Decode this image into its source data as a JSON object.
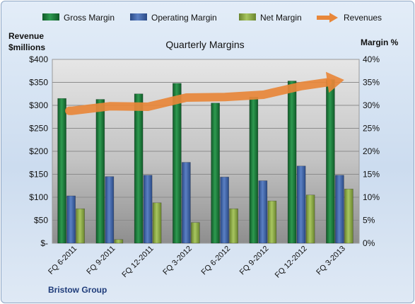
{
  "chart_data": {
    "type": "bar",
    "title": "Quarterly Margins",
    "ylabel_left": "Revenue\n$millions",
    "ylabel_right": "Margin %",
    "source": "Bristow Group",
    "categories": [
      "FQ 6-2011",
      "FQ 9-2011",
      "FQ 12-2011",
      "FQ 3-2012",
      "FQ 6-2012",
      "FQ 9-2012",
      "FQ 12-2012",
      "FQ 3-2013"
    ],
    "ylim_left": [
      0,
      400
    ],
    "ylim_right": [
      0,
      40
    ],
    "left_ticks": [
      "$-",
      "$50",
      "$100",
      "$150",
      "$200",
      "$250",
      "$300",
      "$350",
      "$400"
    ],
    "right_ticks": [
      "0%",
      "5%",
      "10%",
      "15%",
      "20%",
      "25%",
      "30%",
      "35%",
      "40%"
    ],
    "legend_position": "top",
    "series": [
      {
        "name": "Gross Margin",
        "type": "bar",
        "axis": "right",
        "color": "#1e7a3c",
        "values": [
          31.5,
          31.3,
          32.5,
          34.8,
          30.5,
          31.8,
          35.3,
          35.6
        ]
      },
      {
        "name": "Operating Margin",
        "type": "bar",
        "axis": "right",
        "color": "#3f63a6",
        "values": [
          10.3,
          14.5,
          14.8,
          17.6,
          14.4,
          13.6,
          16.8,
          14.8
        ]
      },
      {
        "name": "Net Margin",
        "type": "bar",
        "axis": "right",
        "color": "#8aa847",
        "values": [
          7.5,
          0.8,
          8.8,
          4.5,
          7.5,
          9.2,
          10.5,
          11.8
        ]
      },
      {
        "name": "Revenues",
        "type": "line",
        "axis": "left",
        "color": "#e8873a",
        "values": [
          288,
          298,
          297,
          317,
          318,
          323,
          342,
          354
        ]
      }
    ]
  }
}
